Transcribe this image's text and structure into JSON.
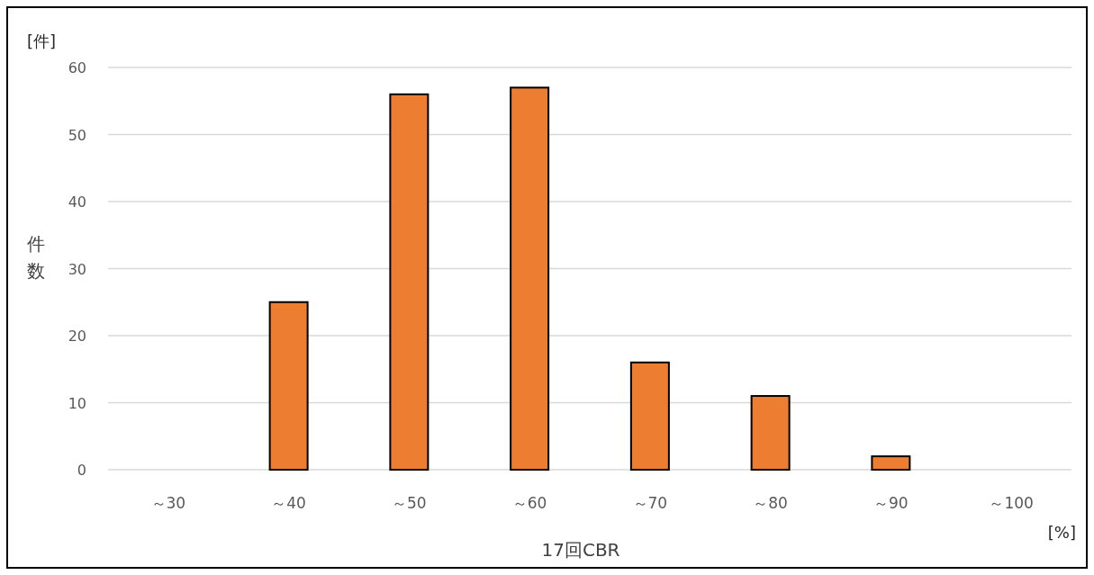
{
  "chart_data": {
    "type": "bar",
    "xlabel": "17回CBR",
    "ylabel": "件数",
    "annotations": [
      "[件]",
      "[%]"
    ],
    "categories": [
      "～30",
      "～40",
      "～50",
      "～60",
      "～70",
      "～80",
      "～90",
      "～100"
    ],
    "values": [
      0,
      25,
      56,
      57,
      16,
      11,
      2,
      0
    ],
    "color": "#ed7d31",
    "ylim": [
      0,
      60
    ],
    "yticks": [
      0,
      10,
      20,
      30,
      40,
      50,
      60
    ],
    "grid": "y"
  }
}
